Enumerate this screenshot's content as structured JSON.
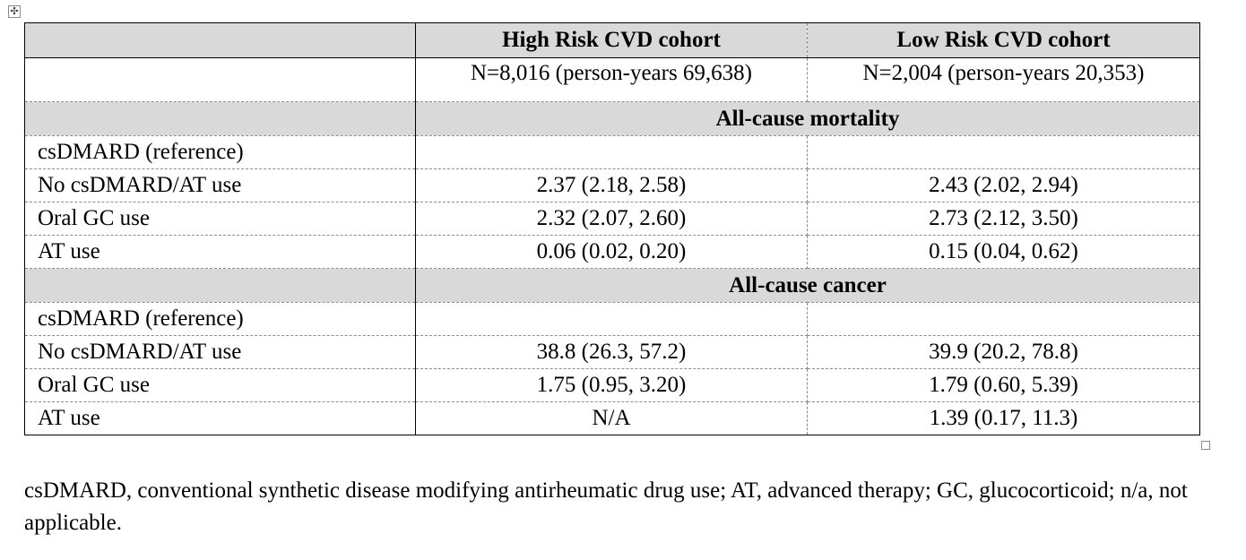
{
  "table": {
    "columns": [
      "",
      "High Risk CVD cohort",
      "Low Risk CVD cohort"
    ],
    "sample_sizes": [
      "",
      "N=8,016 (person-years 69,638)",
      "N=2,004 (person-years 20,353)"
    ],
    "sections": [
      {
        "title": "All-cause mortality",
        "rows": [
          {
            "label": "csDMARD (reference)",
            "high": "",
            "low": ""
          },
          {
            "label": "No csDMARD/AT use",
            "high": "2.37 (2.18, 2.58)",
            "low": "2.43 (2.02, 2.94)"
          },
          {
            "label": "Oral GC use",
            "high": "2.32 (2.07, 2.60)",
            "low": "2.73 (2.12, 3.50)"
          },
          {
            "label": "AT use",
            "high": "0.06 (0.02, 0.20)",
            "low": "0.15 (0.04, 0.62)"
          }
        ]
      },
      {
        "title": "All-cause cancer",
        "rows": [
          {
            "label": "csDMARD (reference)",
            "high": "",
            "low": ""
          },
          {
            "label": "No csDMARD/AT use",
            "high": "38.8 (26.3, 57.2)",
            "low": "39.9 (20.2, 78.8)"
          },
          {
            "label": "Oral GC use",
            "high": "1.75 (0.95, 3.20)",
            "low": "1.79 (0.60, 5.39)"
          },
          {
            "label": "AT use",
            "high": "N/A",
            "low": "1.39 (0.17, 11.3)"
          }
        ]
      }
    ]
  },
  "footnote": "csDMARD, conventional synthetic disease modifying antirheumatic drug use; AT, advanced therapy; GC, glucocorticoid; n/a, not applicable.",
  "colors": {
    "header_shading": "#d9d9d9",
    "text": "#000000"
  }
}
